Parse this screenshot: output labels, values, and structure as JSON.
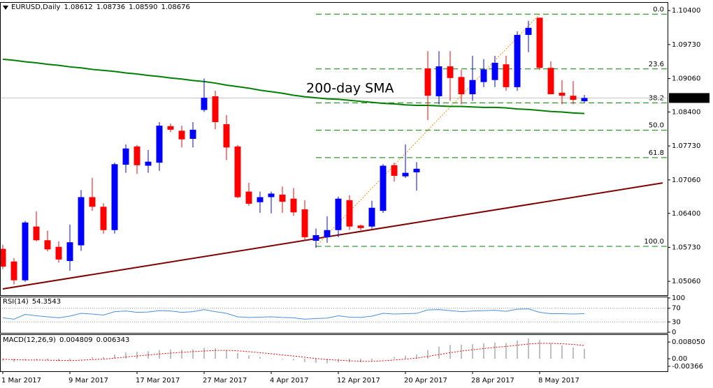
{
  "chart_data": [
    {
      "type": "candlestick",
      "title": "EURUSD,Daily",
      "quote": [
        "1.08612",
        "1.08736",
        "1.08590",
        "1.08676"
      ],
      "categories": [
        "1 Mar 2017",
        null,
        null,
        null,
        null,
        null,
        "9 Mar 2017",
        null,
        null,
        null,
        null,
        null,
        "17 Mar 2017",
        null,
        null,
        null,
        null,
        null,
        "27 Mar 2017",
        null,
        null,
        null,
        null,
        null,
        "4 Apr 2017",
        null,
        null,
        null,
        null,
        null,
        "12 Apr 2017",
        null,
        null,
        null,
        null,
        null,
        "20 Apr 2017",
        null,
        null,
        null,
        null,
        null,
        "28 Apr 2017",
        null,
        null,
        null,
        null,
        null,
        "8 May 2017",
        null,
        null,
        null,
        null
      ],
      "open": [
        1.057,
        1.0545,
        1.0508,
        1.0614,
        1.0587,
        1.0574,
        1.0546,
        1.0577,
        1.0672,
        1.0653,
        1.0607,
        1.0736,
        1.0772,
        1.0734,
        1.074,
        1.0812,
        1.0803,
        1.0787,
        1.0844,
        1.0871,
        1.0816,
        1.0772,
        1.0683,
        1.0662,
        1.0672,
        1.0677,
        1.0669,
        1.0648,
        1.0586,
        1.0593,
        1.0607,
        1.0666,
        1.0616,
        1.0614,
        1.0645,
        1.0735,
        1.0713,
        1.0721,
        1.0926,
        1.0871,
        1.093,
        1.0909,
        1.0875,
        1.0899,
        1.0903,
        1.0934,
        1.0889,
        1.0992,
        1.1026,
        1.0927,
        1.0878,
        1.0872,
        1.08612
      ],
      "high": [
        1.0578,
        1.0552,
        1.0625,
        1.0644,
        1.0606,
        1.0585,
        1.0618,
        1.0686,
        1.071,
        1.066,
        1.074,
        1.0776,
        1.0775,
        1.0765,
        1.082,
        1.0817,
        1.0813,
        1.082,
        1.0906,
        1.0882,
        1.0834,
        1.0775,
        1.07,
        1.0683,
        1.0683,
        1.0693,
        1.069,
        1.0666,
        1.061,
        1.0634,
        1.0673,
        1.0676,
        1.0618,
        1.0665,
        1.0737,
        1.074,
        1.0776,
        1.0741,
        1.096,
        1.096,
        1.096,
        1.0923,
        1.0951,
        1.0944,
        1.0951,
        1.0951,
        1.0999,
        1.102,
        1.1026,
        1.094,
        1.0903,
        1.0901,
        1.08736
      ],
      "low": [
        1.053,
        1.05,
        1.0505,
        1.0585,
        1.0565,
        1.0543,
        1.0527,
        1.0566,
        1.0645,
        1.06,
        1.06,
        1.072,
        1.0718,
        1.072,
        1.0724,
        1.08,
        1.077,
        1.077,
        1.084,
        1.0806,
        1.0745,
        1.067,
        1.0655,
        1.0641,
        1.064,
        1.0641,
        1.0635,
        1.0586,
        1.0572,
        1.0582,
        1.0593,
        1.0607,
        1.0607,
        1.061,
        1.0641,
        1.0703,
        1.071,
        1.0685,
        1.0824,
        1.0855,
        1.0862,
        1.0855,
        1.0862,
        1.0889,
        1.0889,
        1.0882,
        1.0882,
        1.0958,
        1.0923,
        1.0875,
        1.0855,
        1.0855,
        1.0859
      ],
      "close": [
        1.0535,
        1.0508,
        1.0622,
        1.0587,
        1.0569,
        1.0549,
        1.0583,
        1.0672,
        1.0653,
        1.0607,
        1.0737,
        1.0768,
        1.0735,
        1.0742,
        1.0813,
        1.0805,
        1.0786,
        1.0805,
        1.0868,
        1.082,
        1.077,
        1.0672,
        1.0659,
        1.0672,
        1.0679,
        1.0663,
        1.0642,
        1.0593,
        1.0597,
        1.0607,
        1.0669,
        1.0614,
        1.0611,
        1.0651,
        1.0734,
        1.0714,
        1.072,
        1.0728,
        1.0872,
        1.093,
        1.0907,
        1.0875,
        1.0903,
        1.0924,
        1.0937,
        1.0889,
        1.0992,
        1.1006,
        1.0927,
        1.0875,
        1.0872,
        1.0864,
        1.08676
      ],
      "up_color": "#0000ff",
      "down_color": "#ff0000",
      "ylim": [
        1.048,
        1.1054
      ],
      "yticks": [
        {
          "value": 1.104,
          "label": "1.10400"
        },
        {
          "value": 1.0973,
          "label": "1.09730"
        },
        {
          "value": 1.0906,
          "label": "1.09060"
        },
        {
          "value": 1.084,
          "label": "1.08400"
        },
        {
          "value": 1.0773,
          "label": "1.07730"
        },
        {
          "value": 1.0706,
          "label": "1.07060"
        },
        {
          "value": 1.064,
          "label": "1.06400"
        },
        {
          "value": 1.0573,
          "label": "1.05730"
        },
        {
          "value": 1.0506,
          "label": "1.05060"
        }
      ],
      "current_price": 1.08676,
      "series": [
        {
          "name": "200-day SMA",
          "color": "#008000",
          "values": [
            1.0944,
            1.0942,
            1.0939,
            1.0937,
            1.0934,
            1.0932,
            1.0929,
            1.0927,
            1.0924,
            1.0922,
            1.092,
            1.0917,
            1.0915,
            1.0912,
            1.091,
            1.0907,
            1.0905,
            1.0902,
            1.09,
            1.0897,
            1.0893,
            1.089,
            1.0887,
            1.0883,
            1.088,
            1.0877,
            1.0873,
            1.087,
            1.0868,
            1.0866,
            1.0865,
            1.0863,
            1.0861,
            1.0859,
            1.0857,
            1.0856,
            1.0854,
            1.0853,
            1.0853,
            1.0852,
            1.0851,
            1.0851,
            1.085,
            1.0849,
            1.0849,
            1.0848,
            1.0846,
            1.0845,
            1.0843,
            1.0841,
            1.084,
            1.0838,
            1.0837
          ]
        }
      ],
      "trendline": {
        "start_bar": 0,
        "start_price": 1.0491,
        "end_bar": 59,
        "end_price": 1.07,
        "color": "#800000"
      },
      "fibonacci": {
        "high": 1.1033,
        "low": 1.0575,
        "start_bar": 28,
        "end_bar": 48,
        "color": "#008000",
        "anchor_color": "#ff8c00",
        "levels": [
          {
            "value": 0,
            "label": "0.0"
          },
          23.6,
          38.2,
          {
            "value": 50,
            "label": "50.0"
          },
          61.8,
          {
            "value": 100,
            "label": "100.0"
          }
        ]
      }
    },
    {
      "type": "line",
      "title": "RSI(14)",
      "color": "#4a90d9",
      "values": [
        42,
        38,
        52,
        48,
        45,
        42,
        47,
        55,
        53,
        50,
        60,
        62,
        58,
        59,
        63,
        62,
        58,
        60,
        66,
        60,
        55,
        45,
        43,
        44,
        45,
        43,
        42,
        38,
        40,
        41,
        48,
        44,
        43,
        47,
        55,
        53,
        54,
        55,
        65,
        66,
        63,
        60,
        62,
        63,
        64,
        61,
        67,
        68,
        58,
        54,
        54,
        53,
        54.3543
      ],
      "ylim": [
        0,
        100
      ],
      "yticks": [
        0,
        30,
        70,
        100
      ],
      "levels": [
        30,
        70
      ]
    },
    {
      "type": "macd",
      "title": "MACD(12,26,9)",
      "color": "#c0c0c0",
      "signal_color": "#ff0000",
      "values": [
        -0.001,
        -0.0015,
        -0.0008,
        -0.0005,
        -0.0008,
        -0.0012,
        -0.001,
        0.0,
        0.0008,
        0.0008,
        0.002,
        0.003,
        0.0034,
        0.0036,
        0.0042,
        0.0045,
        0.0044,
        0.0045,
        0.0052,
        0.005,
        0.0042,
        0.0028,
        0.0016,
        0.0008,
        0.0002,
        -0.0003,
        -0.0008,
        -0.0016,
        -0.002,
        -0.0022,
        -0.0018,
        -0.0018,
        -0.0017,
        -0.0012,
        0.0,
        0.0008,
        0.0015,
        0.002,
        0.0042,
        0.0058,
        0.0066,
        0.0068,
        0.007,
        0.0074,
        0.0078,
        0.0076,
        0.0088,
        0.0098,
        0.009,
        0.0075,
        0.0064,
        0.0055,
        0.004809
      ],
      "signal": [
        -0.0002,
        -0.0005,
        -0.0006,
        -0.0006,
        -0.0007,
        -0.0008,
        -0.0009,
        -0.0007,
        -0.0004,
        -0.0002,
        0.0003,
        0.0008,
        0.0013,
        0.0018,
        0.0023,
        0.0027,
        0.0031,
        0.0034,
        0.0037,
        0.004,
        0.004,
        0.0038,
        0.0034,
        0.0029,
        0.0024,
        0.0018,
        0.0013,
        0.0007,
        0.0001,
        -0.0004,
        -0.0007,
        -0.001,
        -0.0012,
        -0.0013,
        -0.001,
        -0.0006,
        -0.0002,
        0.0003,
        0.0011,
        0.002,
        0.0029,
        0.0037,
        0.0043,
        0.0049,
        0.0055,
        0.0059,
        0.0065,
        0.0071,
        0.0074,
        0.0074,
        0.0072,
        0.0069,
        0.006343
      ],
      "ylim": [
        -0.0057,
        0.0111
      ],
      "yticks": [
        {
          "value": 0.00805,
          "label": "0.008050"
        },
        {
          "value": 0,
          "label": "0.00"
        },
        {
          "value": -0.00366,
          "label": "-0.00366"
        }
      ]
    }
  ]
}
